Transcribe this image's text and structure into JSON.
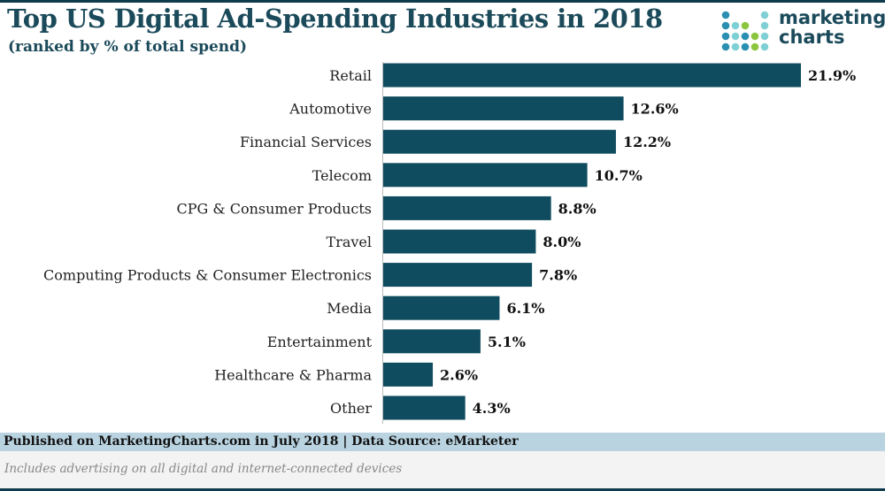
{
  "header": {
    "title": "Top US Digital Ad-Spending Industries in 2018",
    "subtitle": "(ranked by % of total spend)"
  },
  "logo": {
    "line1": "marketing",
    "line2": "charts"
  },
  "footer": {
    "source": "Published on MarketingCharts.com in July 2018 | Data Source: eMarketer",
    "note": "Includes advertising on all digital and internet-connected devices"
  },
  "colors": {
    "bar": "#0f4c5f",
    "footer_band": "#b9d3e0",
    "title": "#1b4a5a"
  },
  "chart_data": {
    "type": "bar",
    "orientation": "horizontal",
    "title": "Top US Digital Ad-Spending Industries in 2018",
    "subtitle": "(ranked by % of total spend)",
    "categories": [
      "Retail",
      "Automotive",
      "Financial Services",
      "Telecom",
      "CPG & Consumer Products",
      "Travel",
      "Computing Products & Consumer Electronics",
      "Media",
      "Entertainment",
      "Healthcare & Pharma",
      "Other"
    ],
    "values": [
      21.9,
      12.6,
      12.2,
      10.7,
      8.8,
      8.0,
      7.8,
      6.1,
      5.1,
      2.6,
      4.3
    ],
    "labels": [
      "21.9%",
      "12.6%",
      "12.2%",
      "10.7%",
      "8.8%",
      "8.0%",
      "7.8%",
      "6.1%",
      "5.1%",
      "2.6%",
      "4.3%"
    ],
    "unit": "%",
    "grid": false,
    "legend": "none"
  }
}
